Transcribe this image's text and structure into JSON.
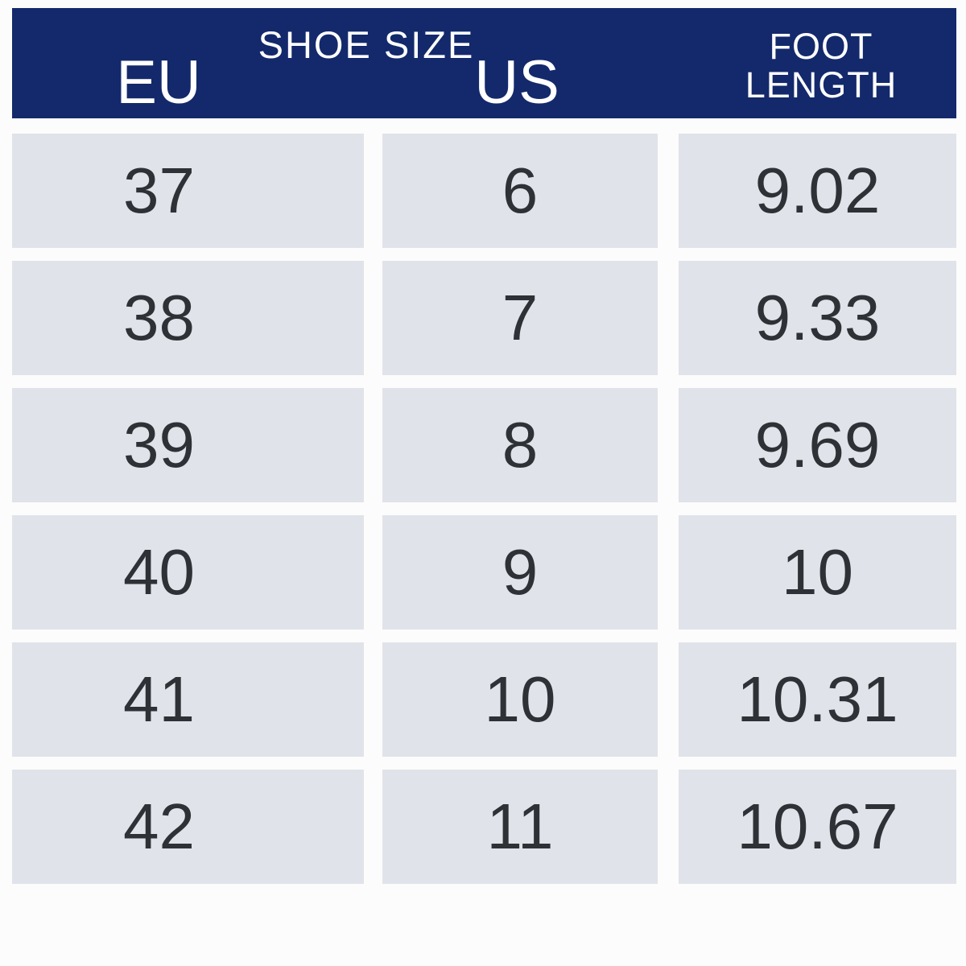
{
  "colors": {
    "header_bg": "#13296b",
    "header_text": "#ffffff",
    "cell_bg": "#e0e3e9",
    "cell_text": "#2e3136",
    "page_bg": "#fcfcfc"
  },
  "header": {
    "title": "SHOE SIZE",
    "columns": [
      {
        "id": "eu",
        "label": "EU"
      },
      {
        "id": "us",
        "label": "US"
      },
      {
        "id": "foot_length",
        "label": "FOOT LENGTH"
      }
    ]
  },
  "rows": [
    {
      "eu": "37",
      "us": "6",
      "foot_length": "9.02"
    },
    {
      "eu": "38",
      "us": "7",
      "foot_length": "9.33"
    },
    {
      "eu": "39",
      "us": "8",
      "foot_length": "9.69"
    },
    {
      "eu": "40",
      "us": "9",
      "foot_length": "10"
    },
    {
      "eu": "41",
      "us": "10",
      "foot_length": "10.31"
    },
    {
      "eu": "42",
      "us": "11",
      "foot_length": "10.67"
    }
  ],
  "chart_data": {
    "type": "table",
    "title": "SHOE SIZE",
    "columns": [
      "EU",
      "US",
      "FOOT LENGTH"
    ],
    "rows": [
      [
        37,
        6,
        9.02
      ],
      [
        38,
        7,
        9.33
      ],
      [
        39,
        8,
        9.69
      ],
      [
        40,
        9,
        10
      ],
      [
        41,
        10,
        10.31
      ],
      [
        42,
        11,
        10.67
      ]
    ],
    "layout_hints": {
      "header_position": "top",
      "grid": "off",
      "row_style": "separated-blocks"
    }
  }
}
